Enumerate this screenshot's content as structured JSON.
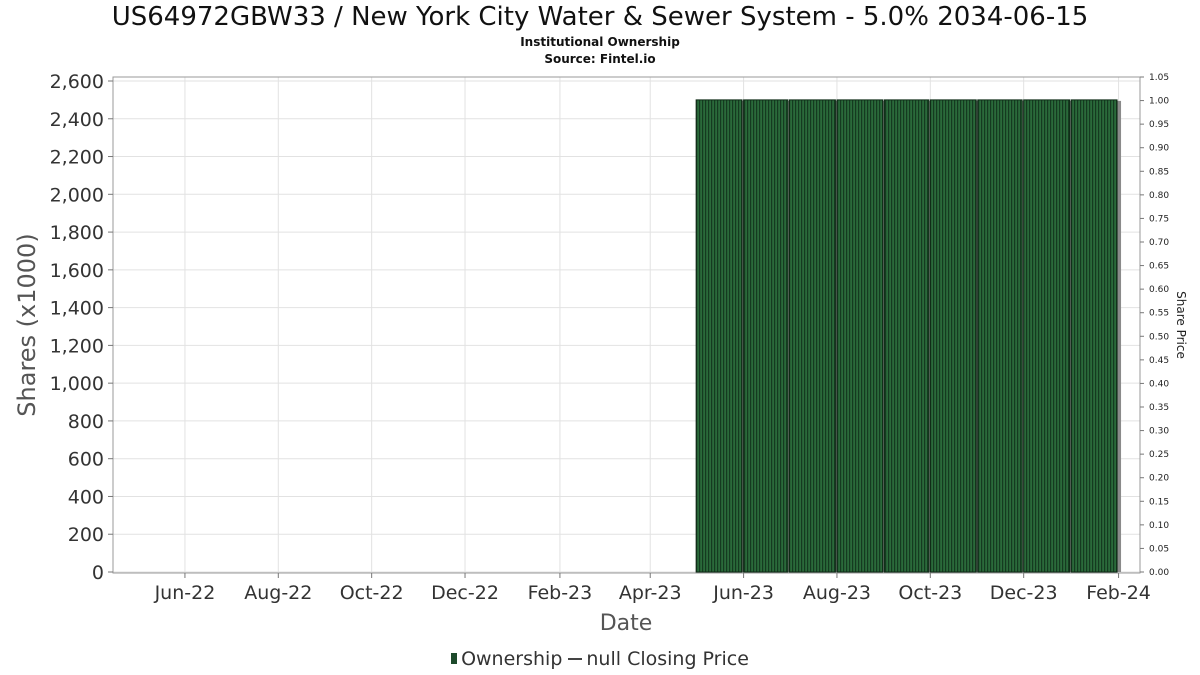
{
  "chart_data": {
    "type": "bar",
    "title": "US64972GBW33 / New York City Water & Sewer System - 5.0% 2034-06-15",
    "subtitle_lines": [
      "Institutional Ownership",
      "Source: Fintel.io"
    ],
    "xlabel": "Date",
    "ylabel": "Shares (x1000)",
    "y2label": "Share Price",
    "ylim": [
      0,
      2600
    ],
    "y_ticks": [
      0,
      200,
      400,
      600,
      800,
      1000,
      1200,
      1400,
      1600,
      1800,
      2000,
      2200,
      2400,
      2600
    ],
    "y_tick_labels": [
      "0",
      "200",
      "400",
      "600",
      "800",
      "1,000",
      "1,200",
      "1,400",
      "1,600",
      "1,800",
      "2,000",
      "2,200",
      "2,400",
      "2,600"
    ],
    "y2lim": [
      0,
      1.05
    ],
    "y2_tick_labels": [
      "0.00",
      "0.05",
      "0.10",
      "0.15",
      "0.20",
      "0.25",
      "0.30",
      "0.35",
      "0.40",
      "0.45",
      "0.50",
      "0.55",
      "0.60",
      "0.65",
      "0.70",
      "0.75",
      "0.80",
      "0.85",
      "0.90",
      "0.95",
      "1.00",
      "1.05"
    ],
    "x_tick_labels": [
      "Jun-22",
      "Aug-22",
      "Oct-22",
      "Dec-22",
      "Feb-23",
      "Apr-23",
      "Jun-23",
      "Aug-23",
      "Oct-23",
      "Dec-23",
      "Feb-24"
    ],
    "x_range": [
      "2022-04-15",
      "2024-02-15"
    ],
    "series": [
      {
        "name": "Ownership",
        "color": "#1d4a2b",
        "bars": [
          {
            "start": "2023-05-01",
            "end": "2023-05-31",
            "value": 2500
          },
          {
            "start": "2023-06-01",
            "end": "2023-06-30",
            "value": 2500
          },
          {
            "start": "2023-07-01",
            "end": "2023-07-31",
            "value": 2500
          },
          {
            "start": "2023-08-01",
            "end": "2023-08-31",
            "value": 2500
          },
          {
            "start": "2023-09-01",
            "end": "2023-09-30",
            "value": 2500
          },
          {
            "start": "2023-10-01",
            "end": "2023-10-31",
            "value": 2500
          },
          {
            "start": "2023-11-01",
            "end": "2023-11-30",
            "value": 2500
          },
          {
            "start": "2023-12-01",
            "end": "2023-12-31",
            "value": 2500
          },
          {
            "start": "2024-01-01",
            "end": "2024-01-31",
            "value": 2500
          }
        ]
      },
      {
        "name": "null Closing Price",
        "color": "#444444",
        "values": []
      }
    ],
    "grid": true,
    "legend_position": "bottom-center"
  }
}
